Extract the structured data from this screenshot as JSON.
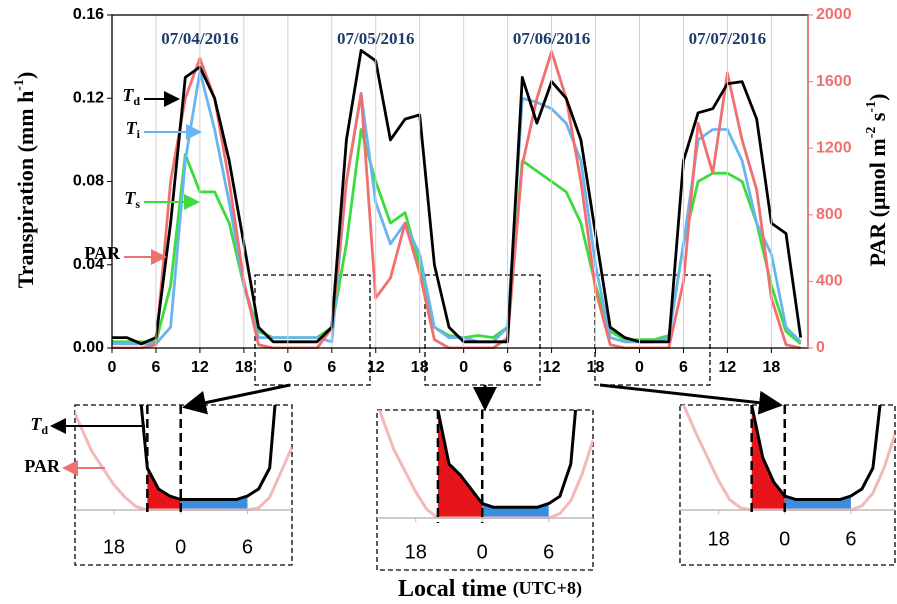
{
  "chart_data": [
    {
      "type": "line",
      "dates": [
        "07/04/2016",
        "07/05/2016",
        "07/06/2016",
        "07/07/2016"
      ],
      "ylabel": [
        "Transpiration (mm h",
        "-1",
        ")"
      ],
      "y2label": [
        "PAR (μmol m",
        "-2",
        " s",
        "-1",
        ")"
      ],
      "xlabel": "Local time",
      "xlabel_note": "(UTC+8)",
      "x": [
        0,
        2,
        4,
        6,
        8,
        10,
        12,
        14,
        16,
        18,
        20,
        22,
        24,
        26,
        28,
        30,
        32,
        34,
        36,
        38,
        40,
        42,
        44,
        46,
        48,
        50,
        52,
        54,
        56,
        58,
        60,
        62,
        64,
        66,
        68,
        70,
        72,
        74,
        76,
        78,
        80,
        82,
        84,
        86,
        88,
        90,
        92,
        94
      ],
      "xlim": [
        0,
        95
      ],
      "xticks": [
        0,
        6,
        12,
        18,
        {
          "value": 24,
          "label": "0"
        },
        {
          "value": 30,
          "label": "6"
        },
        {
          "value": 36,
          "label": "12"
        },
        {
          "value": 42,
          "label": "18"
        },
        {
          "value": 48,
          "label": "0"
        },
        {
          "value": 54,
          "label": "6"
        },
        {
          "value": 60,
          "label": "12"
        },
        {
          "value": 66,
          "label": "18"
        },
        {
          "value": 72,
          "label": "0"
        },
        {
          "value": 78,
          "label": "6"
        },
        {
          "value": 84,
          "label": "12"
        },
        {
          "value": 90,
          "label": "18"
        }
      ],
      "ylim": [
        0,
        0.16
      ],
      "yticks": [
        {
          "value": 0,
          "label": "0.00"
        },
        {
          "value": 0.04,
          "label": "0.04"
        },
        {
          "value": 0.08,
          "label": "0.08"
        },
        {
          "value": 0.12,
          "label": "0.12"
        },
        {
          "value": 0.16,
          "label": "0.16"
        }
      ],
      "y2lim": [
        0,
        2000
      ],
      "y2ticks": [
        0,
        400,
        800,
        1200,
        1600,
        2000
      ],
      "grid": true,
      "series": [
        {
          "name": "T",
          "name_sub": "d",
          "color": "#000000",
          "values": [
            0.005,
            0.005,
            0.002,
            0.005,
            0.06,
            0.13,
            0.135,
            0.12,
            0.09,
            0.05,
            0.01,
            0.003,
            0.003,
            0.003,
            0.003,
            0.01,
            0.1,
            0.143,
            0.138,
            0.1,
            0.11,
            0.112,
            0.04,
            0.01,
            0.003,
            0.003,
            0.003,
            0.003,
            0.13,
            0.108,
            0.128,
            0.12,
            0.1,
            0.055,
            0.01,
            0.005,
            0.003,
            0.003,
            0.003,
            0.09,
            0.113,
            0.115,
            0.127,
            0.128,
            0.11,
            0.06,
            0.055,
            0.005
          ]
        },
        {
          "name": "T",
          "name_sub": "i",
          "color": "#6ab4f0",
          "values": [
            0.002,
            0.002,
            0.002,
            0.002,
            0.01,
            0.09,
            0.133,
            0.105,
            0.07,
            0.03,
            0.005,
            0.005,
            0.005,
            0.005,
            0.005,
            0.003,
            0.08,
            0.122,
            0.07,
            0.05,
            0.06,
            0.045,
            0.01,
            0.005,
            0.005,
            0.003,
            0.003,
            0.01,
            0.12,
            0.118,
            0.115,
            0.108,
            0.09,
            0.04,
            0.005,
            0.003,
            0.003,
            0.003,
            0.005,
            0.05,
            0.1,
            0.105,
            0.105,
            0.09,
            0.06,
            0.045,
            0.01,
            0.003
          ]
        },
        {
          "name": "T",
          "name_sub": "s",
          "color": "#3ddc3d",
          "values": [
            0.003,
            0.003,
            0.003,
            0.003,
            0.03,
            0.093,
            0.075,
            0.075,
            0.06,
            0.03,
            0.008,
            0.005,
            0.005,
            0.005,
            0.005,
            0.01,
            0.05,
            0.105,
            0.08,
            0.06,
            0.065,
            0.04,
            0.01,
            0.006,
            0.005,
            0.006,
            0.005,
            0.01,
            0.09,
            0.085,
            0.08,
            0.075,
            0.06,
            0.03,
            0.008,
            0.004,
            0.004,
            0.004,
            0.006,
            0.05,
            0.08,
            0.084,
            0.084,
            0.08,
            0.06,
            0.03,
            0.008,
            0.002
          ]
        },
        {
          "name": "PAR",
          "color": "#f07070",
          "axis": "y2",
          "values": [
            0,
            0,
            0,
            20,
            1000,
            1500,
            1740,
            1500,
            1000,
            400,
            20,
            0,
            0,
            0,
            0,
            120,
            1000,
            1530,
            300,
            420,
            750,
            450,
            50,
            0,
            0,
            0,
            0,
            60,
            1100,
            1500,
            1780,
            1500,
            1000,
            350,
            20,
            0,
            0,
            0,
            0,
            400,
            1350,
            1050,
            1650,
            1250,
            950,
            300,
            20,
            0
          ]
        }
      ]
    },
    {
      "type": "inset",
      "x": [
        14,
        16,
        18,
        19,
        20,
        21,
        22,
        23,
        24,
        25,
        26,
        27,
        28,
        29,
        30,
        31,
        32,
        33,
        34
      ],
      "xlim": [
        14.5,
        34
      ],
      "xticks": [
        18,
        {
          "value": 24,
          "label": "0"
        },
        {
          "value": 30,
          "label": "6"
        }
      ],
      "ylim": [
        0,
        0.03
      ],
      "y2lim": [
        0,
        250
      ],
      "series": [
        {
          "name": "T",
          "name_sub": "d",
          "color": "#000000",
          "values": [
            0.1,
            0.08,
            0.06,
            0.05,
            0.045,
            0.012,
            0.006,
            0.004,
            0.003,
            0.003,
            0.003,
            0.003,
            0.003,
            0.003,
            0.004,
            0.006,
            0.012,
            0.05,
            0.09
          ]
        },
        {
          "name": "PAR",
          "color": "#f4b8b8",
          "axis": "y2",
          "values": [
            260,
            140,
            60,
            30,
            8,
            0,
            0,
            0,
            0,
            0,
            0,
            0,
            0,
            0,
            0,
            5,
            30,
            90,
            150
          ]
        }
      ]
    },
    {
      "type": "inset",
      "x": [
        14,
        16,
        18,
        19,
        20,
        21,
        22,
        23,
        24,
        25,
        26,
        27,
        28,
        29,
        30,
        31,
        32,
        33,
        34
      ],
      "xlim": [
        14.5,
        34
      ],
      "xticks": [
        18,
        {
          "value": 24,
          "label": "0"
        },
        {
          "value": 30,
          "label": "6"
        }
      ],
      "ylim": [
        0,
        0.03
      ],
      "y2lim": [
        0,
        250
      ],
      "series": [
        {
          "color": "#000000",
          "values": [
            0.09,
            0.07,
            0.05,
            0.04,
            0.03,
            0.015,
            0.012,
            0.008,
            0.004,
            0.003,
            0.003,
            0.003,
            0.003,
            0.003,
            0.004,
            0.006,
            0.015,
            0.05,
            0.09
          ]
        },
        {
          "color": "#f4b8b8",
          "axis": "y2",
          "values": [
            300,
            160,
            60,
            20,
            0,
            0,
            0,
            0,
            0,
            0,
            0,
            0,
            0,
            0,
            0,
            10,
            40,
            100,
            180
          ]
        }
      ]
    },
    {
      "type": "inset",
      "x": [
        14,
        16,
        18,
        19,
        20,
        21,
        22,
        23,
        24,
        25,
        26,
        27,
        28,
        29,
        30,
        31,
        32,
        33,
        34
      ],
      "xlim": [
        14.5,
        34
      ],
      "xticks": [
        18,
        {
          "value": 24,
          "label": "0"
        },
        {
          "value": 30,
          "label": "6"
        }
      ],
      "ylim": [
        0,
        0.03
      ],
      "y2lim": [
        0,
        250
      ],
      "series": [
        {
          "color": "#000000",
          "values": [
            0.1,
            0.1,
            0.1,
            0.1,
            0.1,
            0.03,
            0.015,
            0.008,
            0.004,
            0.003,
            0.003,
            0.003,
            0.003,
            0.003,
            0.004,
            0.006,
            0.012,
            0.04,
            0.09
          ]
        },
        {
          "color": "#f4b8b8",
          "axis": "y2",
          "values": [
            300,
            180,
            70,
            25,
            5,
            0,
            0,
            0,
            0,
            0,
            0,
            0,
            0,
            0,
            0,
            10,
            40,
            100,
            180
          ]
        }
      ]
    }
  ]
}
